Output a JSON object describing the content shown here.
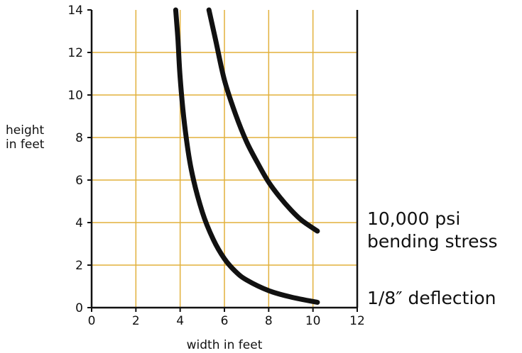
{
  "chart_data": {
    "type": "line",
    "title": "",
    "xlabel": "width in feet",
    "ylabel_lines": [
      "height",
      "in feet"
    ],
    "xlim": [
      0,
      12
    ],
    "ylim": [
      0,
      14
    ],
    "xticks": [
      0,
      2,
      4,
      6,
      8,
      10,
      12
    ],
    "yticks": [
      0,
      2,
      4,
      6,
      8,
      10,
      12,
      14
    ],
    "grid": true,
    "colors": {
      "grid": "#e2b13c",
      "axis": "#111111",
      "line": "#111111"
    },
    "series": [
      {
        "name": "10,000 psi bending stress",
        "label_lines": [
          "10,000 psi",
          "bending stress"
        ],
        "x": [
          5.3,
          5.6,
          6.0,
          6.5,
          7.0,
          7.5,
          8.0,
          8.5,
          9.0,
          9.5,
          10.2
        ],
        "y": [
          14.0,
          12.6,
          10.7,
          9.1,
          7.8,
          6.8,
          5.9,
          5.2,
          4.6,
          4.1,
          3.6
        ]
      },
      {
        "name": "1/8″ deflection",
        "label_lines": [
          "1/8″ deflection"
        ],
        "x": [
          3.8,
          3.9,
          4.0,
          4.2,
          4.5,
          5.0,
          5.5,
          6.0,
          6.5,
          7.0,
          8.0,
          9.0,
          10.2
        ],
        "y": [
          14.0,
          12.6,
          10.8,
          8.6,
          6.5,
          4.5,
          3.2,
          2.3,
          1.7,
          1.3,
          0.8,
          0.5,
          0.25
        ]
      }
    ]
  }
}
